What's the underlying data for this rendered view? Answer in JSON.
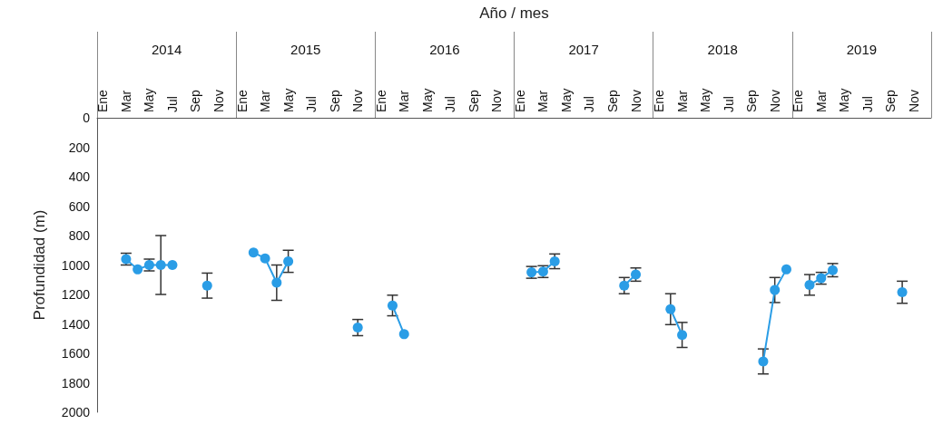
{
  "chart_data": {
    "type": "line",
    "xlabel": "Año / mes",
    "ylabel": "Profundidad (m)",
    "categories": [
      "Ene",
      null,
      "Mar",
      null,
      "May",
      null,
      "Jul",
      null,
      "Sep",
      null,
      "Nov",
      null,
      "Ene",
      null,
      "Mar",
      null,
      "May",
      null,
      "Jul",
      null,
      "Sep",
      null,
      "Nov",
      null,
      "Ene",
      null,
      "Mar",
      null,
      "May",
      null,
      "Jul",
      null,
      "Sep",
      null,
      "Nov",
      null,
      "Ene",
      null,
      "Mar",
      null,
      "May",
      null,
      "Jul",
      null,
      "Sep",
      null,
      "Nov",
      null,
      "Ene",
      null,
      "Mar",
      null,
      "May",
      null,
      "Jul",
      null,
      "Sep",
      null,
      "Nov",
      null,
      "Ene",
      null,
      "Mar",
      null,
      "May",
      null,
      "Jul",
      null,
      "Sep",
      null,
      "Nov",
      null
    ],
    "series": [
      {
        "color": "#2a9de6",
        "values": [
          null,
          null,
          960,
          1030,
          1000,
          1000,
          1000,
          null,
          null,
          1140,
          null,
          null,
          null,
          915,
          955,
          1120,
          975,
          null,
          null,
          null,
          null,
          null,
          1425,
          null,
          null,
          1275,
          1470,
          null,
          null,
          null,
          null,
          null,
          null,
          null,
          null,
          null,
          null,
          1050,
          1045,
          975,
          null,
          null,
          null,
          null,
          null,
          1140,
          1065,
          null,
          null,
          1300,
          1475,
          null,
          null,
          null,
          null,
          null,
          null,
          1655,
          1170,
          1030,
          null,
          1135,
          1090,
          1035,
          null,
          null,
          null,
          null,
          null,
          1185,
          null,
          null
        ],
        "errors": [
          null,
          null,
          40,
          null,
          40,
          200,
          null,
          null,
          null,
          85,
          null,
          null,
          null,
          null,
          null,
          120,
          75,
          null,
          null,
          null,
          null,
          null,
          55,
          null,
          null,
          70,
          null,
          null,
          null,
          null,
          null,
          null,
          null,
          null,
          null,
          null,
          null,
          40,
          40,
          50,
          null,
          null,
          null,
          null,
          null,
          55,
          45,
          null,
          null,
          105,
          85,
          null,
          null,
          null,
          null,
          null,
          null,
          85,
          85,
          null,
          null,
          70,
          40,
          45,
          null,
          null,
          null,
          null,
          null,
          75,
          null,
          null
        ]
      }
    ],
    "annotations": [
      "2014",
      "2015",
      "2016",
      "2017",
      "2018",
      "2019"
    ],
    "ylim": [
      2000,
      0
    ],
    "yticks": [
      0,
      200,
      400,
      600,
      800,
      1000,
      1200,
      1400,
      1600,
      1800,
      2000
    ],
    "grid": false,
    "marker": "circle",
    "line_style": "solid"
  }
}
